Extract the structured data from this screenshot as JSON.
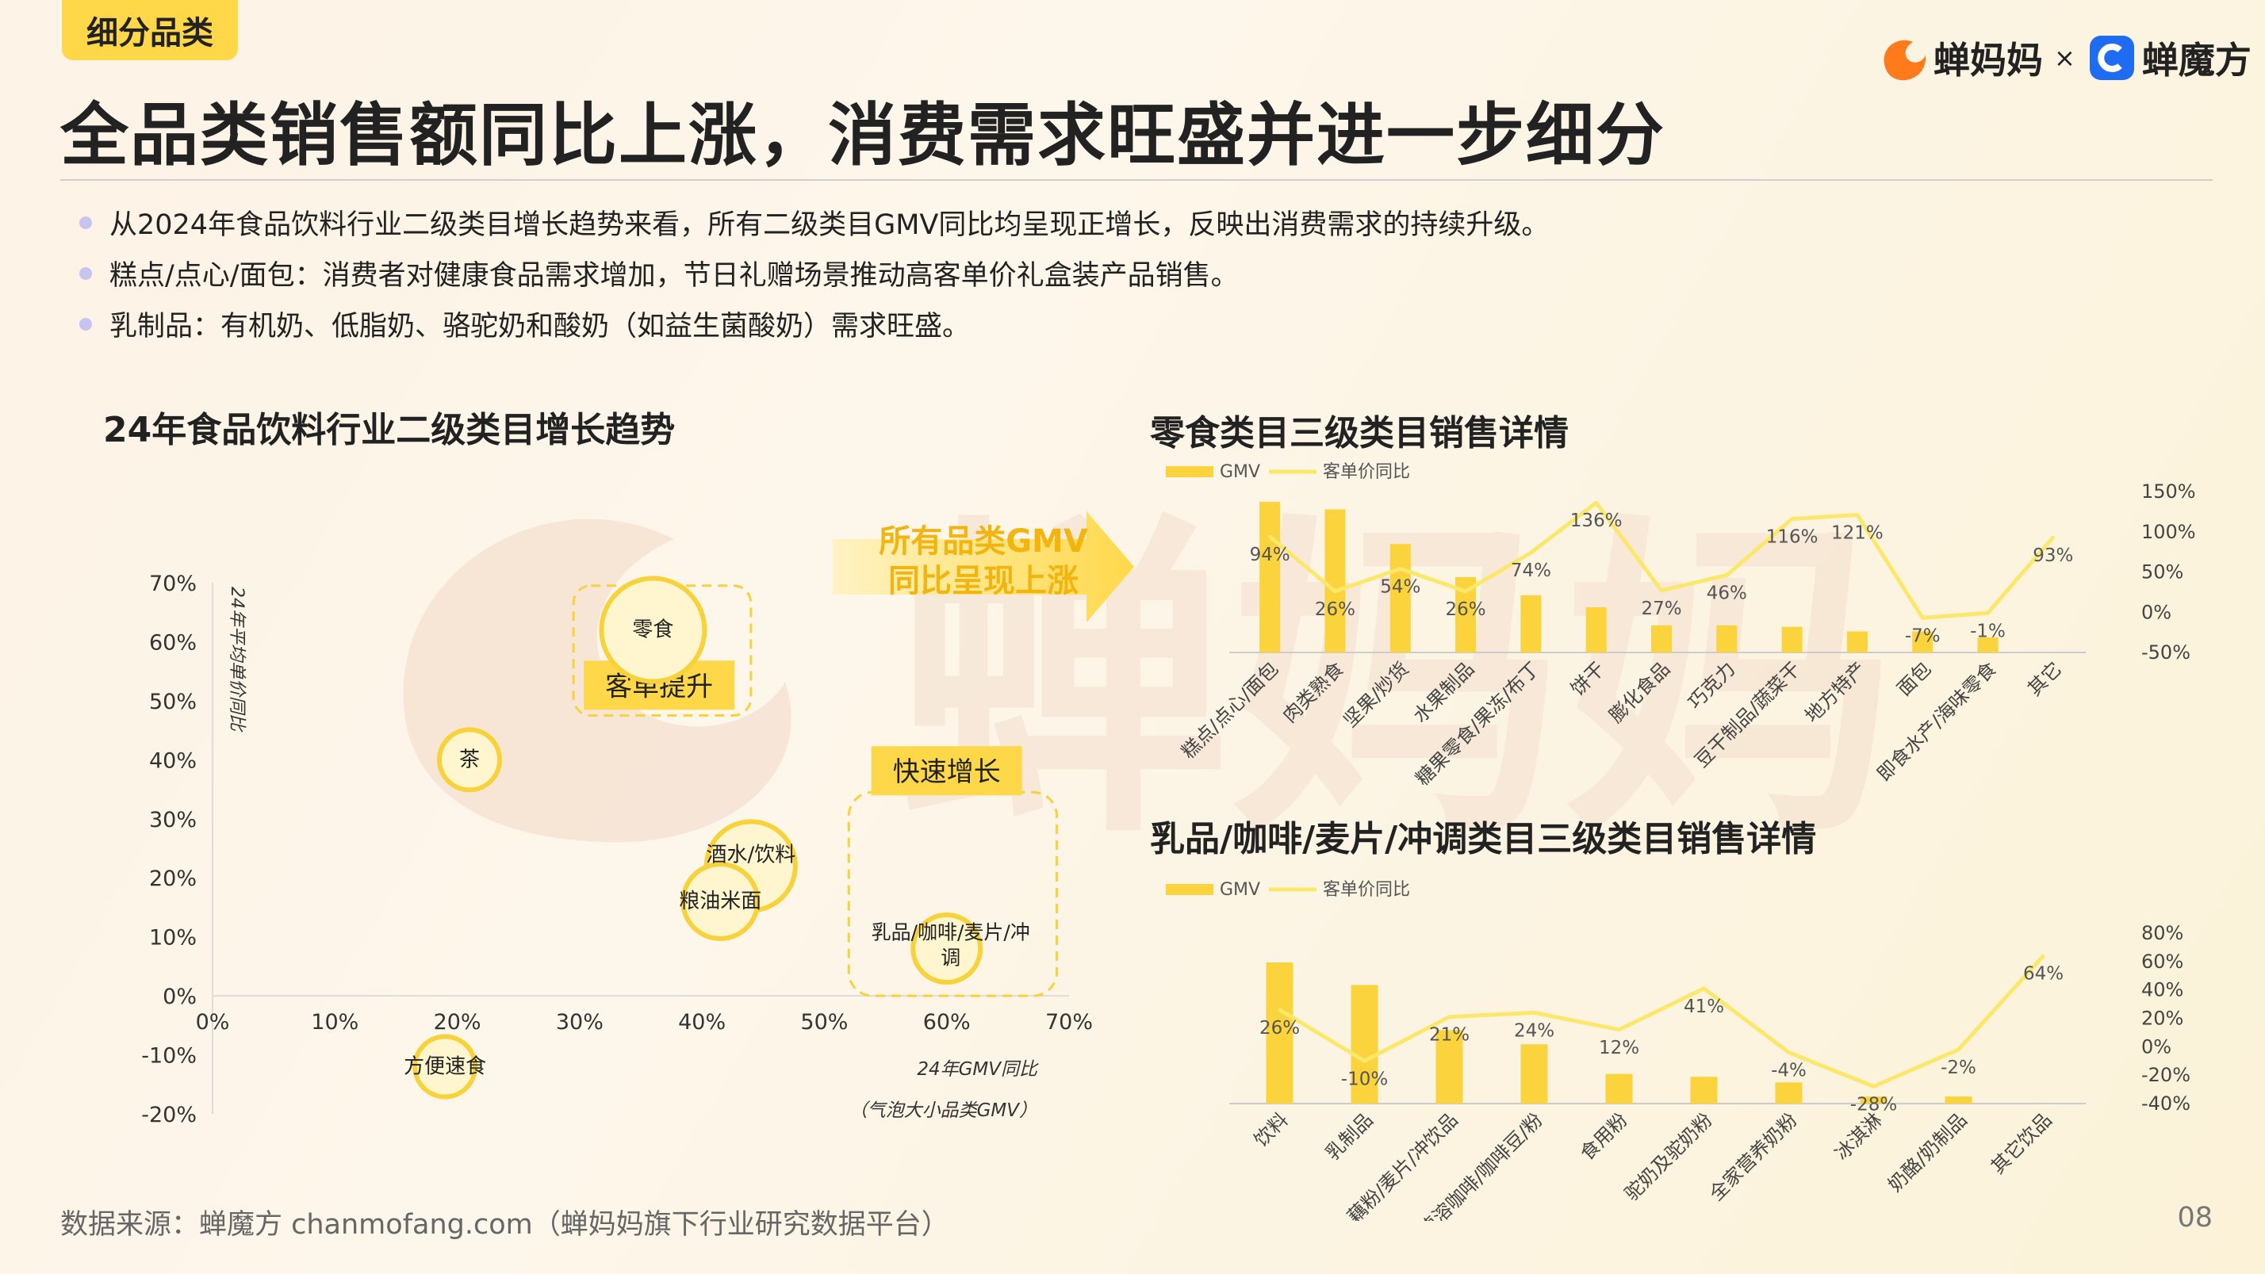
{
  "tag": "细分品类",
  "title": "全品类销售额同比上涨，消费需求旺盛并进一步细分",
  "brand": {
    "logo1": "蝉妈妈",
    "times": "×",
    "logo2": "蝉魔方",
    "watermark": "蝉妈妈"
  },
  "bullets": [
    "从2024年食品饮料行业二级类目增长趋势来看，所有二级类目GMV同比均呈现正增长，反映出消费需求的持续升级。",
    "糕点/点心/面包：消费者对健康食品需求增加，节日礼赠场景推动高客单价礼盒装产品销售。",
    "乳制品：有机奶、低脂奶、骆驼奶和酸奶（如益生菌酸奶）需求旺盛。"
  ],
  "arrow_text": [
    "所有品类GMV",
    "同比呈现上涨"
  ],
  "footer": "数据来源：蝉魔方 chanmofang.com（蝉妈妈旗下行业研究数据平台）",
  "page_number": "08",
  "colors": {
    "accent": "#ffd84a",
    "bar": "#fbd33c",
    "line": "#fbe86a",
    "bubble": "#f7d23a"
  },
  "chart_data": [
    {
      "type": "scatter",
      "title": "24年食品饮料行业二级类目增长趋势",
      "xlabel": "24年GMV同比",
      "ylabel": "24年平均单价同比",
      "size_note": "（气泡大小品类GMV）",
      "xlim": [
        0,
        70
      ],
      "ylim": [
        -20,
        70
      ],
      "xticks": [
        "0%",
        "10%",
        "20%",
        "30%",
        "40%",
        "50%",
        "60%",
        "70%"
      ],
      "yticks": [
        "70%",
        "60%",
        "50%",
        "40%",
        "30%",
        "20%",
        "10%",
        "0%",
        "-10%",
        "-20%"
      ],
      "points": [
        {
          "label": "零食",
          "x": 36,
          "y": 62,
          "size": 5
        },
        {
          "label": "茶",
          "x": 21,
          "y": 40,
          "size": 2
        },
        {
          "label": "酒水/饮料",
          "x": 44,
          "y": 22,
          "size": 4
        },
        {
          "label": "粮油米面",
          "x": 41.5,
          "y": 16,
          "size": 3
        },
        {
          "label": "乳品/咖啡/麦片/冲调",
          "x": 60,
          "y": 8,
          "size": 2.5
        },
        {
          "label": "方便速食",
          "x": 19,
          "y": -12,
          "size": 2
        }
      ],
      "annotations": [
        "客单提升",
        "快速增长"
      ]
    },
    {
      "type": "bar",
      "title": "零食类目三级类目销售详情",
      "legend": [
        "GMV",
        "客单价同比"
      ],
      "categories": [
        "糕点/点心/面包",
        "肉类熟食",
        "坚果/炒货",
        "水果制品",
        "糖果零食/果冻/布丁",
        "饼干",
        "膨化食品",
        "巧克力",
        "豆干制品/蔬菜干",
        "地方特产",
        "面包",
        "即食水产/海味零食",
        "其它"
      ],
      "gmv_relative": [
        100,
        95,
        72,
        50,
        38,
        30,
        18,
        18,
        17,
        14,
        14,
        10,
        0
      ],
      "series": [
        {
          "name": "客单价同比",
          "values": [
            94,
            26,
            54,
            26,
            74,
            136,
            27,
            46,
            116,
            121,
            -7,
            -1,
            93
          ]
        }
      ],
      "value_labels": [
        "94%",
        "26%",
        "54%",
        "26%",
        "74%",
        "136%",
        "27%",
        "46%",
        "116%",
        "121%",
        "-7%",
        "-1%",
        "93%"
      ],
      "y2lim": [
        -50,
        150
      ],
      "y2ticks": [
        "150%",
        "100%",
        "50%",
        "0%",
        "-50%"
      ]
    },
    {
      "type": "bar",
      "title": "乳品/咖啡/麦片/冲调类目三级类目销售详情",
      "legend": [
        "GMV",
        "客单价同比"
      ],
      "categories": [
        "饮料",
        "乳制品",
        "藕粉/麦片/冲饮品",
        "速溶咖啡/咖啡豆/粉",
        "食用粉",
        "驼奶及驼奶粉",
        "全家营养奶粉",
        "冰淇淋",
        "奶酪/奶制品",
        "其它饮品"
      ],
      "gmv_relative": [
        100,
        84,
        52,
        42,
        21,
        19,
        15,
        5,
        5,
        0
      ],
      "series": [
        {
          "name": "客单价同比",
          "values": [
            26,
            -10,
            21,
            24,
            12,
            41,
            -4,
            -28,
            -2,
            64
          ]
        }
      ],
      "value_labels": [
        "26%",
        "-10%",
        "21%",
        "24%",
        "12%",
        "41%",
        "-4%",
        "-28%",
        "-2%",
        "64%"
      ],
      "y2lim": [
        -40,
        80
      ],
      "y2ticks": [
        "80%",
        "60%",
        "40%",
        "20%",
        "0%",
        "-20%",
        "-40%"
      ]
    }
  ]
}
